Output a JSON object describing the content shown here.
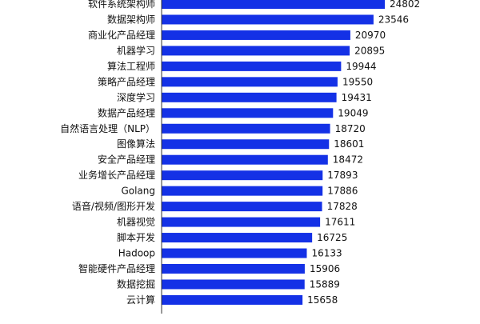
{
  "colors": {
    "bar": "#1431e6",
    "axis": "#333333",
    "text": "#111111",
    "background": "#ffffff"
  },
  "chart_data": {
    "type": "bar",
    "orientation": "horizontal",
    "title": "",
    "xlabel": "",
    "ylabel": "",
    "grid": false,
    "legend": "none",
    "xlim": [
      0,
      30000
    ],
    "categories": [
      "软件系统架构师",
      "数据架构师",
      "商业化产品经理",
      "机器学习",
      "算法工程师",
      "策略产品经理",
      "深度学习",
      "数据产品经理",
      "自然语言处理（NLP）",
      "图像算法",
      "安全产品经理",
      "业务增长产品经理",
      "Golang",
      "语音/视频/图形开发",
      "机器视觉",
      "脚本开发",
      "Hadoop",
      "智能硬件产品经理",
      "数据挖掘",
      "云计算"
    ],
    "values": [
      24802,
      23546,
      20970,
      20895,
      19944,
      19550,
      19431,
      19049,
      18720,
      18601,
      18472,
      17893,
      17886,
      17828,
      17611,
      16725,
      16133,
      15906,
      15889,
      15658
    ]
  }
}
